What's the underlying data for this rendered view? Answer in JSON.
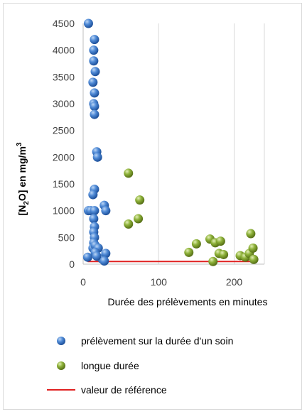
{
  "chart_data": {
    "type": "scatter",
    "xlabel": "Durée des prélèvements en minutes",
    "ylabel": {
      "prefix": "[N",
      "sub1": "2",
      "mid": "O] en mg/m",
      "sup": "3"
    },
    "xlim": [
      0,
      240
    ],
    "ylim": [
      0,
      4500
    ],
    "xticks": [
      0,
      100,
      200
    ],
    "yticks": [
      0,
      500,
      1000,
      1500,
      2000,
      2500,
      3000,
      3500,
      4000,
      4500
    ],
    "grid": "vertical major gridlines",
    "legend_position": "bottom",
    "series": [
      {
        "name": "prélèvement sur la durée d'un soin",
        "marker": "sphere",
        "color": "#2f6fc4",
        "points": [
          [
            7,
            4500
          ],
          [
            15,
            4200
          ],
          [
            14,
            4000
          ],
          [
            14,
            3800
          ],
          [
            16,
            3600
          ],
          [
            13,
            3400
          ],
          [
            15,
            3200
          ],
          [
            14,
            3000
          ],
          [
            15,
            2950
          ],
          [
            15,
            2800
          ],
          [
            18,
            2100
          ],
          [
            19,
            2000
          ],
          [
            15,
            1400
          ],
          [
            13,
            1300
          ],
          [
            7,
            1000
          ],
          [
            10,
            1000
          ],
          [
            15,
            1000
          ],
          [
            28,
            1100
          ],
          [
            30,
            1000
          ],
          [
            14,
            850
          ],
          [
            15,
            700
          ],
          [
            14,
            600
          ],
          [
            15,
            500
          ],
          [
            14,
            400
          ],
          [
            13,
            300
          ],
          [
            16,
            350
          ],
          [
            20,
            300
          ],
          [
            25,
            100
          ],
          [
            30,
            200
          ],
          [
            6,
            130
          ],
          [
            16,
            220
          ],
          [
            18,
            150
          ],
          [
            28,
            60
          ]
        ]
      },
      {
        "name": "longue durée",
        "marker": "sphere",
        "color": "#7f9c2a",
        "points": [
          [
            60,
            1700
          ],
          [
            75,
            1200
          ],
          [
            73,
            850
          ],
          [
            60,
            750
          ],
          [
            168,
            470
          ],
          [
            175,
            400
          ],
          [
            182,
            430
          ],
          [
            150,
            380
          ],
          [
            140,
            220
          ],
          [
            172,
            50
          ],
          [
            180,
            200
          ],
          [
            186,
            180
          ],
          [
            208,
            160
          ],
          [
            215,
            130
          ],
          [
            220,
            200
          ],
          [
            222,
            570
          ],
          [
            225,
            300
          ],
          [
            226,
            90
          ]
        ]
      },
      {
        "name": "valeur de référence",
        "marker": "line",
        "color": "#e02020",
        "x": [
          6,
          226
        ],
        "y": [
          50,
          50
        ]
      }
    ]
  }
}
